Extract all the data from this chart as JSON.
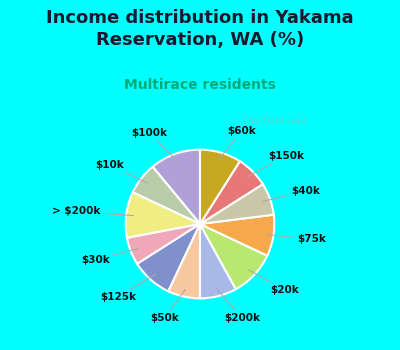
{
  "title": "Income distribution in Yakama\nReservation, WA (%)",
  "subtitle": "Multirace residents",
  "background_color": "#00ffff",
  "chart_bg_color": "#e8f5f0",
  "labels": [
    "$100k",
    "$10k",
    "> $200k",
    "$30k",
    "$125k",
    "$50k",
    "$200k",
    "$20k",
    "$75k",
    "$40k",
    "$150k",
    "$60k"
  ],
  "values": [
    11,
    7,
    10,
    6,
    9,
    7,
    8,
    10,
    9,
    7,
    7,
    9
  ],
  "colors": [
    "#b0a0d8",
    "#b8ccaa",
    "#f0ee80",
    "#f0a8b8",
    "#8090cc",
    "#f8c8a0",
    "#a8b8e8",
    "#b8e870",
    "#f8a84a",
    "#c8c8a8",
    "#e87878",
    "#c8a820"
  ],
  "startangle": 90,
  "title_fontsize": 13,
  "subtitle_fontsize": 10,
  "label_fontsize": 7.5,
  "watermark": "City-Data.com"
}
